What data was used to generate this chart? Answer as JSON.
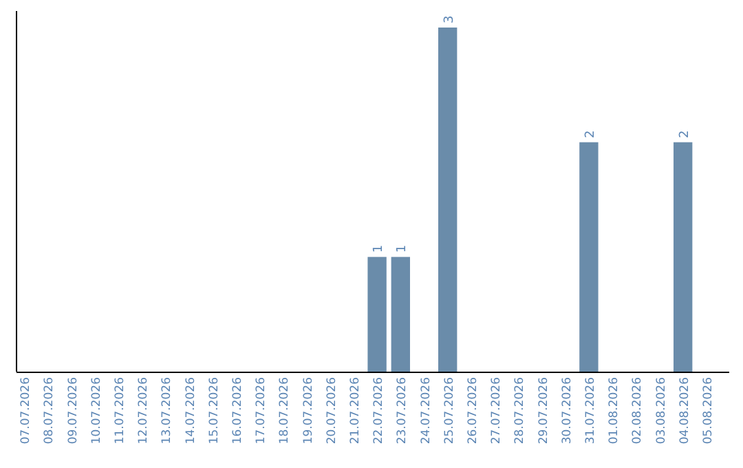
{
  "chart_data": {
    "type": "bar",
    "categories": [
      "07.07.2026",
      "08.07.2026",
      "09.07.2026",
      "10.07.2026",
      "11.07.2026",
      "12.07.2026",
      "13.07.2026",
      "14.07.2026",
      "15.07.2026",
      "16.07.2026",
      "17.07.2026",
      "18.07.2026",
      "19.07.2026",
      "20.07.2026",
      "21.07.2026",
      "22.07.2026",
      "23.07.2026",
      "24.07.2026",
      "25.07.2026",
      "26.07.2026",
      "27.07.2026",
      "28.07.2026",
      "29.07.2026",
      "30.07.2026",
      "31.07.2026",
      "01.08.2026",
      "02.08.2026",
      "03.08.2026",
      "04.08.2026",
      "05.08.2026"
    ],
    "values": [
      null,
      null,
      null,
      null,
      null,
      null,
      null,
      null,
      null,
      null,
      null,
      null,
      null,
      null,
      null,
      1,
      1,
      null,
      3,
      null,
      null,
      null,
      null,
      null,
      2,
      null,
      null,
      null,
      2,
      null
    ],
    "value_labels": [
      null,
      null,
      null,
      null,
      null,
      null,
      null,
      null,
      null,
      null,
      null,
      null,
      null,
      null,
      null,
      "1",
      "1",
      null,
      "3",
      null,
      null,
      null,
      null,
      null,
      "2",
      null,
      null,
      null,
      "2",
      null
    ],
    "color": "#6a8caa",
    "tick_labels": "x"
  }
}
